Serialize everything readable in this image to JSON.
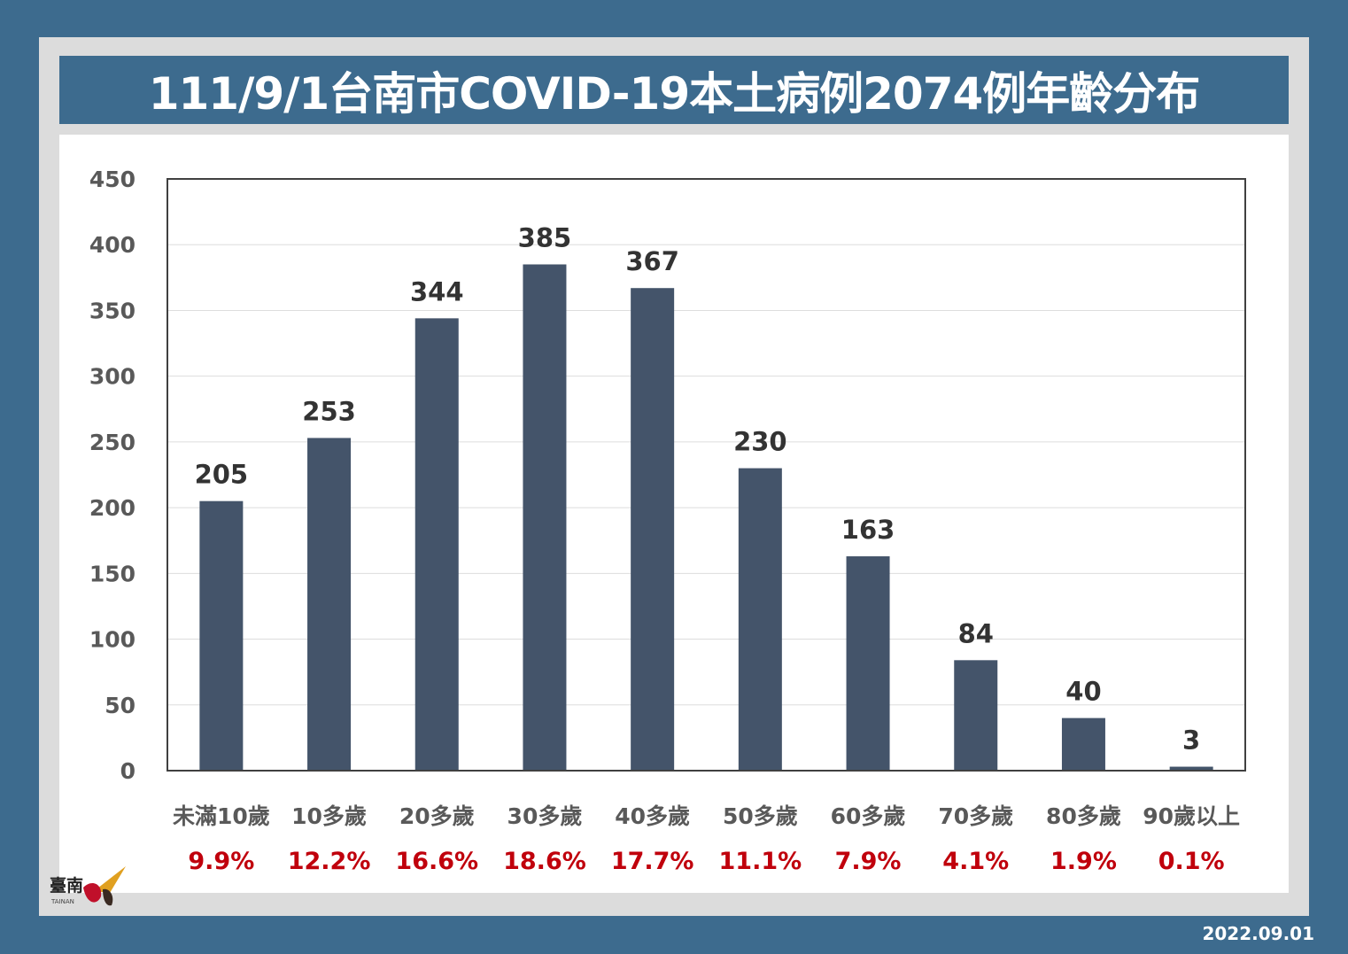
{
  "title": "111/9/1台南市COVID-19本土病例2074例年齡分布",
  "date": "2022.09.01",
  "logo_text": "臺南",
  "logo_subtext": "TAINAN",
  "colors": {
    "background": "#3d6b8e",
    "bar": "#44546a",
    "percent": "#c0000c",
    "axis_text": "#595959",
    "label_text": "#333333"
  },
  "chart_data": {
    "type": "bar",
    "title": "111/9/1台南市COVID-19本土病例2074例年齡分布",
    "categories": [
      "未滿10歲",
      "10多歲",
      "20多歲",
      "30多歲",
      "40多歲",
      "50多歲",
      "60多歲",
      "70多歲",
      "80多歲",
      "90歲以上"
    ],
    "values": [
      205,
      253,
      344,
      385,
      367,
      230,
      163,
      84,
      40,
      3
    ],
    "percentages": [
      "9.9%",
      "12.2%",
      "16.6%",
      "18.6%",
      "17.7%",
      "11.1%",
      "7.9%",
      "4.1%",
      "1.9%",
      "0.1%"
    ],
    "ylim": [
      0,
      450
    ],
    "yticks": [
      0,
      50,
      100,
      150,
      200,
      250,
      300,
      350,
      400,
      450
    ],
    "grid": true,
    "xlabel": "",
    "ylabel": ""
  }
}
